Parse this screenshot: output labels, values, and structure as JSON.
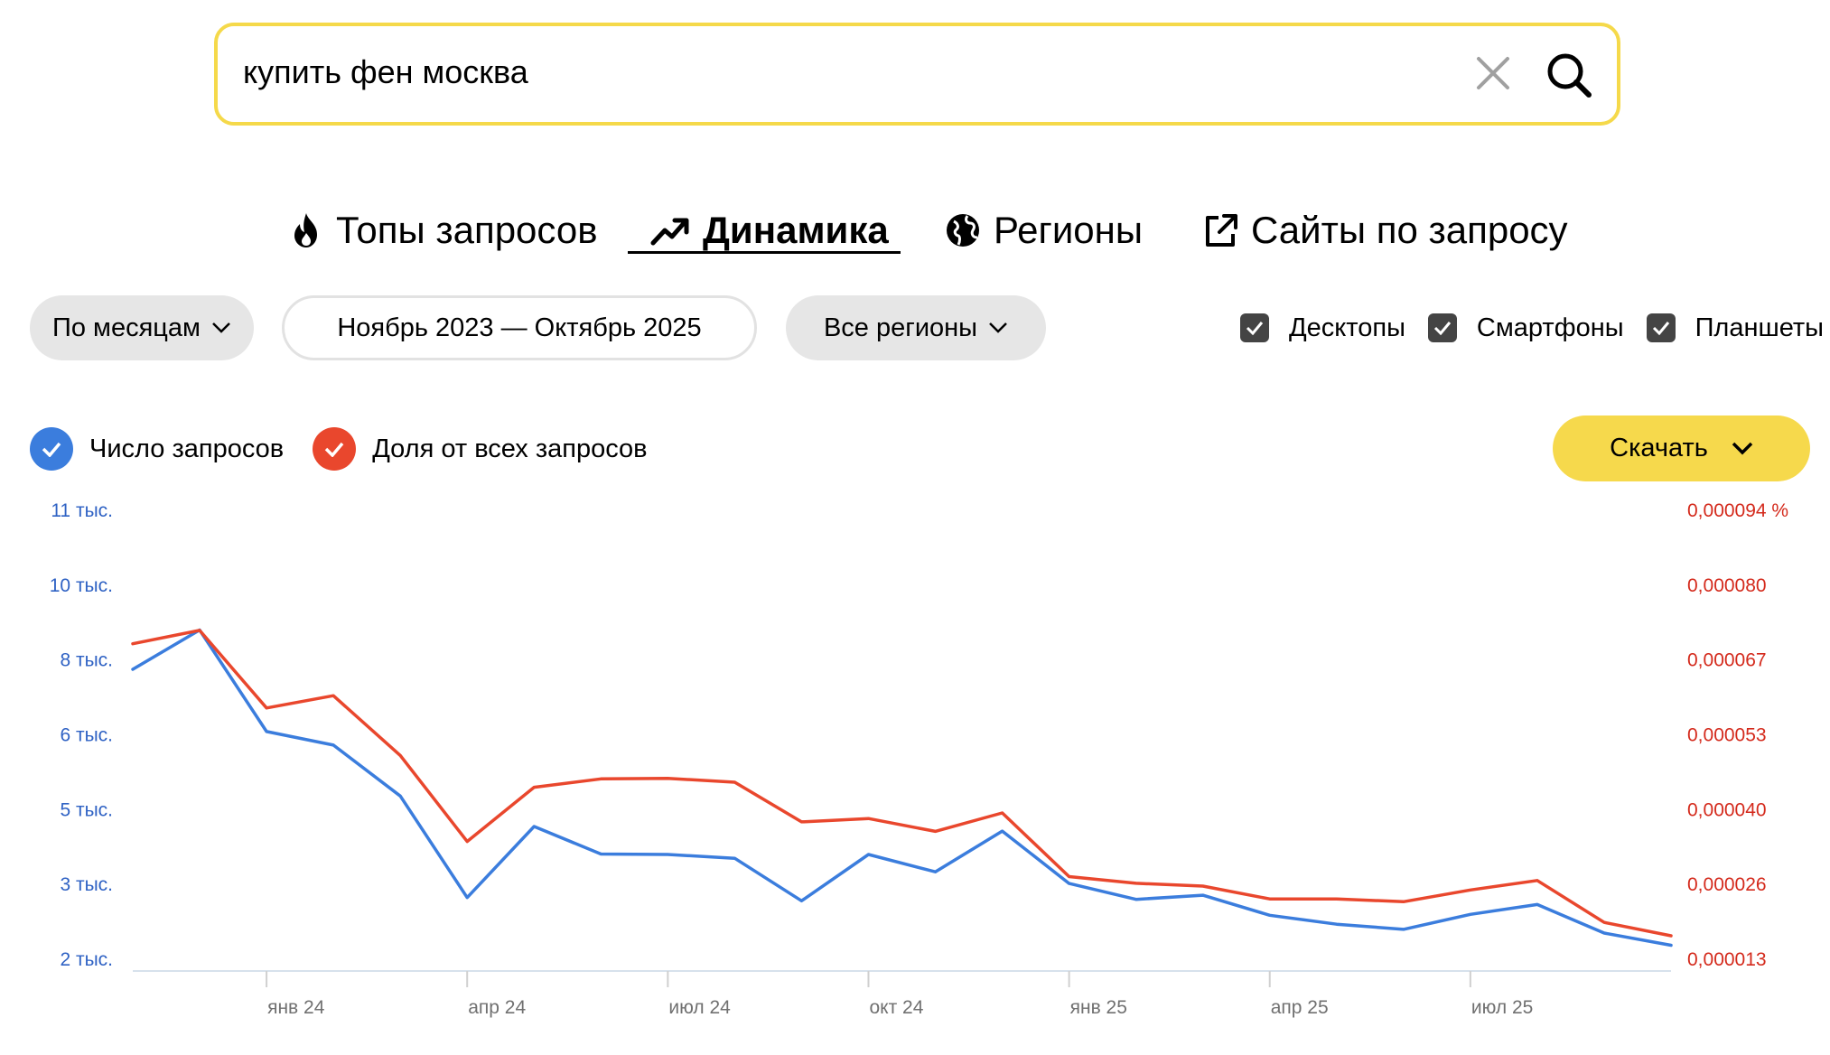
{
  "search": {
    "query": "купить фен москва"
  },
  "tabs": [
    {
      "label": "Топы запросов",
      "icon": "fire-icon",
      "active": false
    },
    {
      "label": "Динамика",
      "icon": "trend-up-icon",
      "active": true
    },
    {
      "label": "Регионы",
      "icon": "globe-icon",
      "active": false
    },
    {
      "label": "Сайты по запросу",
      "icon": "external-link-icon",
      "active": false
    }
  ],
  "filters": {
    "period": "По месяцам",
    "date_range": "Ноябрь 2023 — Октябрь 2025",
    "region": "Все регионы"
  },
  "devices": [
    {
      "label": "Десктопы",
      "checked": true
    },
    {
      "label": "Смартфоны",
      "checked": true
    },
    {
      "label": "Планшеты",
      "checked": true
    }
  ],
  "legend": [
    {
      "label": "Число запросов",
      "color": "#3b7ddd"
    },
    {
      "label": "Доля от всех запросов",
      "color": "#e9472d"
    }
  ],
  "download": {
    "label": "Скачать"
  },
  "chart_data": {
    "type": "line",
    "x": [
      "2023-11",
      "2023-12",
      "2024-01",
      "2024-02",
      "2024-03",
      "2024-04",
      "2024-05",
      "2024-06",
      "2024-07",
      "2024-08",
      "2024-09",
      "2024-10",
      "2024-11",
      "2024-12",
      "2025-01",
      "2025-02",
      "2025-03",
      "2025-04",
      "2025-05",
      "2025-06",
      "2025-07",
      "2025-08",
      "2025-09",
      "2025-10"
    ],
    "x_tick_labels": [
      "янв 24",
      "апр 24",
      "июл 24",
      "окт 24",
      "янв 25",
      "апр 25",
      "июл 25"
    ],
    "x_tick_months": [
      "2024-01",
      "2024-04",
      "2024-07",
      "2024-10",
      "2025-01",
      "2025-04",
      "2025-07"
    ],
    "y_left": {
      "tick_labels": [
        "2 тыс.",
        "3 тыс.",
        "5 тыс.",
        "6 тыс.",
        "8 тыс.",
        "10 тыс.",
        "11 тыс."
      ],
      "tick_values": [
        1680,
        3280,
        4880,
        6480,
        8080,
        9680,
        11280
      ],
      "range": [
        1680,
        11280
      ],
      "color": "#2f62c4"
    },
    "y_right": {
      "tick_labels": [
        "0,000013",
        "0,000026",
        "0,000040",
        "0,000053",
        "0,000067",
        "0,000080",
        "0,000094 %"
      ],
      "tick_values": [
        1.34e-05,
        2.68e-05,
        4.02e-05,
        5.36e-05,
        6.7e-05,
        8.04e-05,
        9.38e-05
      ],
      "range": [
        1.34e-05,
        9.38e-05
      ],
      "color": "#d42a1c"
    },
    "series": [
      {
        "name": "Число запросов",
        "axis": "left",
        "color": "#3b7ddd",
        "values": [
          7880,
          8720,
          6550,
          6260,
          5170,
          3000,
          4520,
          3930,
          3920,
          3840,
          2930,
          3920,
          3550,
          4420,
          3300,
          2960,
          3050,
          2620,
          2430,
          2320,
          2640,
          2850,
          2240,
          1980
        ]
      },
      {
        "name": "Доля от всех запросов",
        "axis": "right",
        "color": "#e9472d",
        "values": [
          6.99e-05,
          7.23e-05,
          5.84e-05,
          6.06e-05,
          4.99e-05,
          3.45e-05,
          4.42e-05,
          4.57e-05,
          4.58e-05,
          4.51e-05,
          3.8e-05,
          3.86e-05,
          3.63e-05,
          3.96e-05,
          2.82e-05,
          2.7e-05,
          2.65e-05,
          2.42e-05,
          2.42e-05,
          2.37e-05,
          2.58e-05,
          2.75e-05,
          2e-05,
          1.76e-05
        ]
      }
    ]
  }
}
